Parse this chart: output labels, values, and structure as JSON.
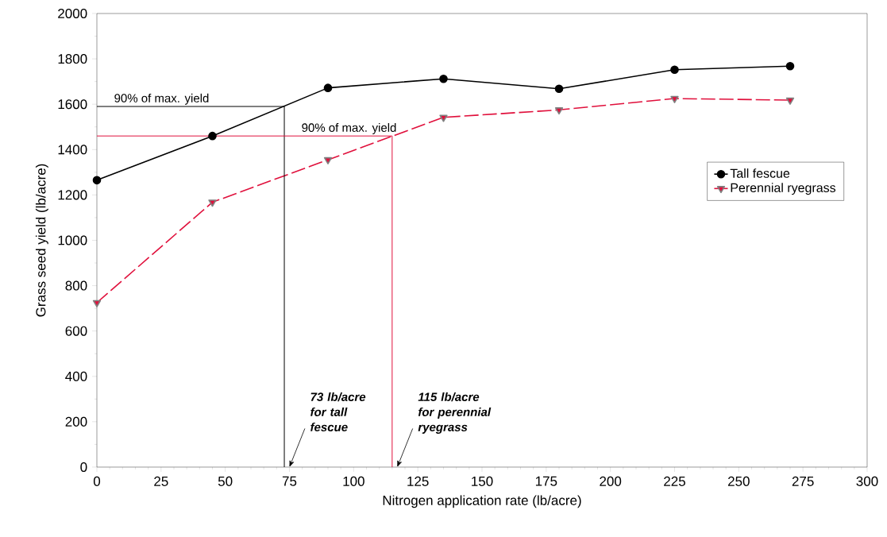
{
  "chart_data": {
    "type": "line",
    "xlabel": "Nitrogen application rate (lb/acre)",
    "ylabel": "Grass seed yield (lb/acre)",
    "x": [
      0,
      45,
      90,
      135,
      180,
      225,
      270
    ],
    "series": [
      {
        "name": "Tall fescue",
        "color": "#000000",
        "marker": "circle",
        "line_style": "solid",
        "values": [
          1265,
          1460,
          1672,
          1712,
          1668,
          1752,
          1768
        ]
      },
      {
        "name": "Perennial ryegrass",
        "color": "#e0103c",
        "marker": "triangle",
        "line_style": "dashed",
        "values": [
          725,
          1168,
          1355,
          1542,
          1575,
          1625,
          1618
        ]
      },
      {
        "type": "line",
        "color": "#000000",
        "marker": "none",
        "line_style": "solid",
        "x": [
          0,
          73,
          73
        ],
        "values": [
          1590,
          1590,
          0
        ]
      },
      {
        "type": "line",
        "color": "#e0103c",
        "marker": "none",
        "line_style": "solid",
        "x": [
          0,
          115,
          115
        ],
        "values": [
          1460,
          1460,
          0
        ]
      }
    ],
    "annotations": [
      {
        "text": "90% of max. yield",
        "x": 0,
        "y": 1590
      },
      {
        "text": "90% of max. yield",
        "x": 73,
        "y": 1460
      },
      "73 lb/acre for tall fescue",
      "115 lb/acre for perennial ryegrass"
    ],
    "xlim": [
      0,
      300
    ],
    "xticks": [
      0,
      25,
      50,
      75,
      100,
      125,
      150,
      175,
      200,
      225,
      250,
      275,
      300
    ],
    "ylim": [
      0,
      2000
    ],
    "yticks": [
      0,
      200,
      400,
      600,
      800,
      1000,
      1200,
      1400,
      1600,
      1800,
      2000
    ],
    "legend": "right",
    "grid": false
  }
}
